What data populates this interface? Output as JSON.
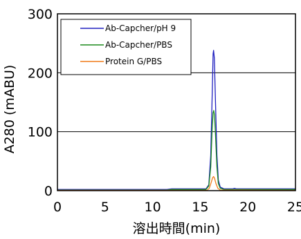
{
  "chart_data": {
    "type": "line",
    "title": "",
    "xlabel": "溶出時間(min)",
    "ylabel": "A280 (mABU)",
    "xlim": [
      0,
      25
    ],
    "ylim": [
      0,
      300
    ],
    "xticks": [
      0,
      5,
      10,
      15,
      20,
      25
    ],
    "yticks": [
      0,
      100,
      200,
      300
    ],
    "grid": "horizontal",
    "legend_position": "top-left",
    "series": [
      {
        "name": "Ab-Capcher/pH 9",
        "color": "#1f1fbf",
        "points": [
          [
            0,
            2
          ],
          [
            11.5,
            2
          ],
          [
            12,
            3
          ],
          [
            13,
            3
          ],
          [
            15.6,
            3
          ],
          [
            15.9,
            10
          ],
          [
            16.1,
            60
          ],
          [
            16.25,
            160
          ],
          [
            16.35,
            232
          ],
          [
            16.4,
            238
          ],
          [
            16.48,
            225
          ],
          [
            16.6,
            150
          ],
          [
            16.75,
            60
          ],
          [
            16.9,
            18
          ],
          [
            17.1,
            6
          ],
          [
            17.5,
            3
          ],
          [
            18.4,
            3
          ],
          [
            18.6,
            4
          ],
          [
            18.8,
            3
          ],
          [
            25,
            3
          ]
        ]
      },
      {
        "name": "Ab-Capcher/PBS",
        "color": "#1a8a1a",
        "points": [
          [
            0,
            1
          ],
          [
            11.5,
            1
          ],
          [
            12,
            2
          ],
          [
            15.6,
            2
          ],
          [
            15.9,
            8
          ],
          [
            16.1,
            40
          ],
          [
            16.25,
            105
          ],
          [
            16.35,
            132
          ],
          [
            16.42,
            136
          ],
          [
            16.5,
            128
          ],
          [
            16.6,
            95
          ],
          [
            16.75,
            40
          ],
          [
            16.9,
            12
          ],
          [
            17.1,
            4
          ],
          [
            17.5,
            2
          ],
          [
            25,
            2
          ]
        ]
      },
      {
        "name": "Protein G/PBS",
        "color": "#f07b1a",
        "points": [
          [
            0,
            0.5
          ],
          [
            15.7,
            0.5
          ],
          [
            15.95,
            4
          ],
          [
            16.15,
            14
          ],
          [
            16.3,
            22
          ],
          [
            16.4,
            24
          ],
          [
            16.5,
            21
          ],
          [
            16.65,
            12
          ],
          [
            16.85,
            4
          ],
          [
            17.1,
            1
          ],
          [
            25,
            0.5
          ]
        ]
      }
    ]
  }
}
